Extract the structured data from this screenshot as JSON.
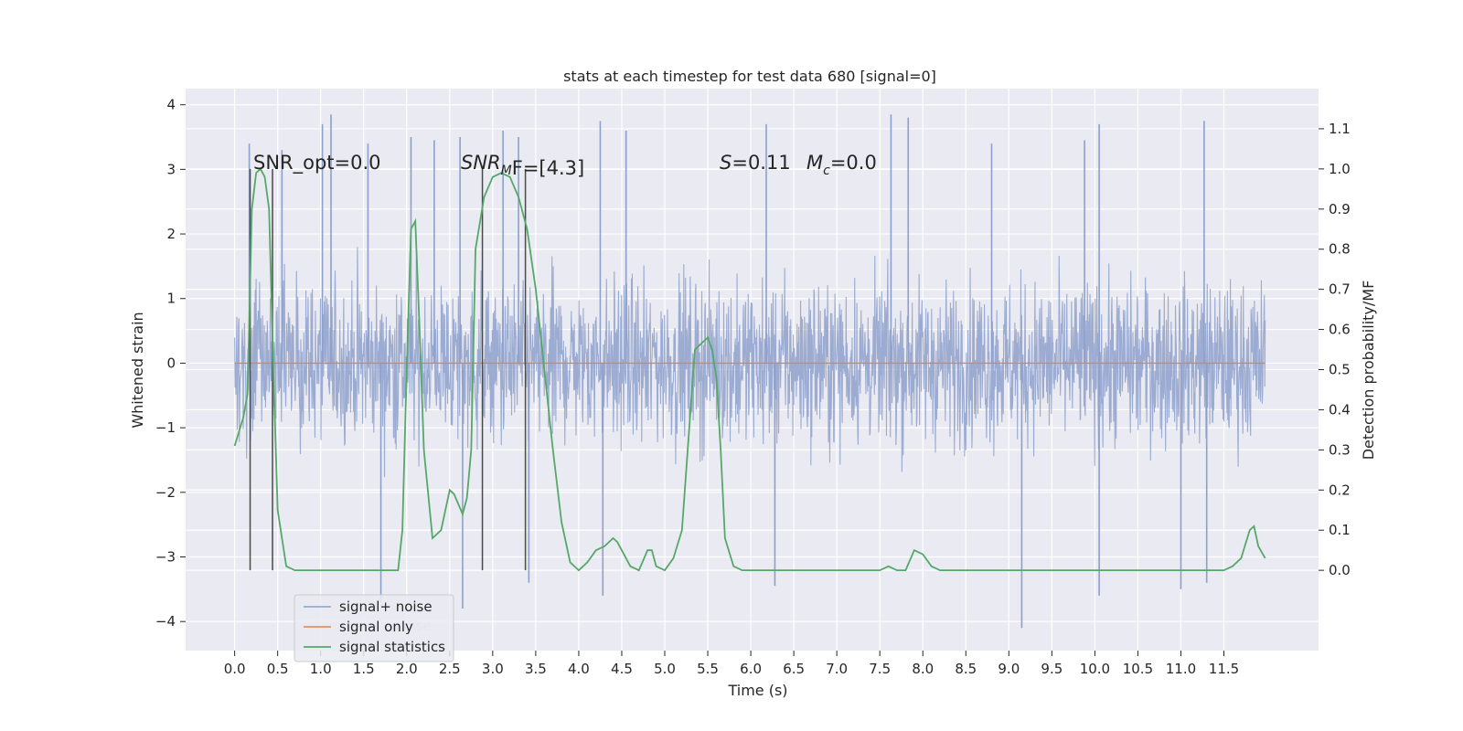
{
  "chart_data": {
    "type": "line",
    "title": "stats at each timestep for test data 680 [signal=0]",
    "xlabel": "Time (s)",
    "ylabel_left": "Whitened strain",
    "ylabel_right": "Detection probability/MF",
    "xlim": [
      -0.57,
      12.6
    ],
    "ylim_left": [
      -4.45,
      4.25
    ],
    "ylim_right": [
      -0.2,
      1.2
    ],
    "x_ticks": [
      0.0,
      0.5,
      1.0,
      1.5,
      2.0,
      2.5,
      3.0,
      3.5,
      4.0,
      4.5,
      5.0,
      5.5,
      6.0,
      6.5,
      7.0,
      7.5,
      8.0,
      8.5,
      9.0,
      9.5,
      10.0,
      10.5,
      11.0,
      11.5
    ],
    "x_tick_labels": [
      "0.0",
      "0.5",
      "1.0",
      "1.5",
      "2.0",
      "2.5",
      "3.0",
      "3.5",
      "4.0",
      "4.5",
      "5.0",
      "5.5",
      "6.0",
      "6.5",
      "7.0",
      "7.5",
      "8.0",
      "8.5",
      "9.0",
      "9.5",
      "10.0",
      "10.5",
      "11.0",
      "11.5"
    ],
    "y_ticks_left": [
      4,
      3,
      2,
      1,
      0,
      -1,
      -2,
      -3,
      -4
    ],
    "y_tick_labels_left": [
      "4",
      "3",
      "2",
      "1",
      "0",
      "−1",
      "−2",
      "−3",
      "−4"
    ],
    "y_ticks_right": [
      1.1,
      1.0,
      0.9,
      0.8,
      0.7,
      0.6,
      0.5,
      0.4,
      0.3,
      0.2,
      0.1,
      0.0
    ],
    "y_tick_labels_right": [
      "1.1",
      "1.0",
      "0.9",
      "0.8",
      "0.7",
      "0.6",
      "0.5",
      "0.4",
      "0.3",
      "0.2",
      "0.1",
      "0.0"
    ],
    "grid": true,
    "legend_position": "lower-left",
    "legend": [
      "signal+ noise",
      "signal only",
      "signal statistics"
    ],
    "legend_background_text": "noise",
    "colors": {
      "noise": "#8da0cb",
      "signal_only": "#dd8452",
      "stats": "#55a868",
      "vlines": "#4a4a4a",
      "plot_bg": "#eaeaf2",
      "grid": "#ffffff"
    },
    "series": [
      {
        "name": "signal+ noise",
        "axis": "left",
        "description_values": "dense whitened noise from t=0.0 to t=11.98 s, bulk band roughly -1.5 to 1.7, spikes up to about 3.9 and down to about -4.1",
        "x_range": [
          0.0,
          11.98
        ],
        "spikes": [
          {
            "x": 0.17,
            "y": 3.4
          },
          {
            "x": 0.55,
            "y": 3.3
          },
          {
            "x": 1.02,
            "y": 3.7
          },
          {
            "x": 1.12,
            "y": 3.85
          },
          {
            "x": 1.55,
            "y": 3.4
          },
          {
            "x": 2.05,
            "y": 3.5
          },
          {
            "x": 2.32,
            "y": 3.45
          },
          {
            "x": 2.62,
            "y": 3.5
          },
          {
            "x": 3.12,
            "y": 3.6
          },
          {
            "x": 3.3,
            "y": 3.5
          },
          {
            "x": 4.25,
            "y": 3.75
          },
          {
            "x": 4.55,
            "y": 3.6
          },
          {
            "x": 6.18,
            "y": 3.7
          },
          {
            "x": 7.63,
            "y": 3.85
          },
          {
            "x": 7.83,
            "y": 3.8
          },
          {
            "x": 8.8,
            "y": 3.4
          },
          {
            "x": 9.88,
            "y": 3.45
          },
          {
            "x": 10.05,
            "y": 3.7
          },
          {
            "x": 11.27,
            "y": 3.75
          },
          {
            "x": 1.7,
            "y": -3.7
          },
          {
            "x": 2.65,
            "y": -3.8
          },
          {
            "x": 3.42,
            "y": -3.4
          },
          {
            "x": 4.28,
            "y": -3.6
          },
          {
            "x": 6.28,
            "y": -3.45
          },
          {
            "x": 9.15,
            "y": -4.1
          },
          {
            "x": 10.05,
            "y": -3.6
          },
          {
            "x": 11.0,
            "y": -3.5
          },
          {
            "x": 11.3,
            "y": -3.4
          }
        ]
      },
      {
        "name": "signal only",
        "axis": "left",
        "x": [
          0.0,
          11.98
        ],
        "y": [
          0.0,
          0.0
        ]
      },
      {
        "name": "signal statistics",
        "axis": "right",
        "x": [
          0.0,
          0.1,
          0.15,
          0.2,
          0.25,
          0.3,
          0.35,
          0.4,
          0.45,
          0.5,
          0.55,
          0.6,
          0.7,
          1.0,
          1.5,
          1.9,
          1.95,
          2.0,
          2.05,
          2.1,
          2.15,
          2.2,
          2.3,
          2.4,
          2.5,
          2.55,
          2.65,
          2.7,
          2.75,
          2.8,
          2.9,
          3.0,
          3.1,
          3.2,
          3.3,
          3.4,
          3.5,
          3.6,
          3.7,
          3.8,
          3.9,
          4.0,
          4.1,
          4.2,
          4.3,
          4.4,
          4.45,
          4.5,
          4.6,
          4.7,
          4.8,
          4.85,
          4.9,
          5.0,
          5.1,
          5.2,
          5.3,
          5.35,
          5.4,
          5.45,
          5.5,
          5.55,
          5.6,
          5.65,
          5.7,
          5.8,
          5.9,
          6.0,
          6.5,
          7.0,
          7.5,
          7.6,
          7.7,
          7.8,
          7.9,
          8.0,
          8.1,
          8.2,
          8.3,
          8.5,
          9.0,
          9.5,
          10.0,
          10.5,
          11.0,
          11.5,
          11.6,
          11.7,
          11.8,
          11.85,
          11.9,
          11.98
        ],
        "y": [
          0.31,
          0.38,
          0.44,
          0.9,
          0.99,
          1.0,
          0.98,
          0.9,
          0.5,
          0.15,
          0.08,
          0.01,
          0.0,
          0.0,
          0.0,
          0.0,
          0.1,
          0.5,
          0.85,
          0.87,
          0.6,
          0.3,
          0.08,
          0.1,
          0.2,
          0.19,
          0.14,
          0.18,
          0.3,
          0.8,
          0.93,
          0.98,
          0.99,
          0.98,
          0.93,
          0.85,
          0.7,
          0.5,
          0.3,
          0.12,
          0.02,
          0.0,
          0.02,
          0.05,
          0.06,
          0.08,
          0.07,
          0.05,
          0.01,
          0.0,
          0.05,
          0.05,
          0.01,
          0.0,
          0.03,
          0.1,
          0.4,
          0.55,
          0.56,
          0.57,
          0.58,
          0.55,
          0.48,
          0.3,
          0.08,
          0.01,
          0.0,
          0.0,
          0.0,
          0.0,
          0.0,
          0.01,
          0.0,
          0.0,
          0.05,
          0.04,
          0.01,
          0.0,
          0.0,
          0.0,
          0.0,
          0.0,
          0.0,
          0.0,
          0.0,
          0.0,
          0.01,
          0.03,
          0.1,
          0.11,
          0.06,
          0.03
        ]
      }
    ],
    "vertical_lines": [
      {
        "x": 0.18,
        "from": 0.0,
        "to": 1.0,
        "axis": "right"
      },
      {
        "x": 0.44,
        "from": 0.0,
        "to": 1.0,
        "axis": "right"
      },
      {
        "x": 2.88,
        "from": 0.0,
        "to": 1.0,
        "axis": "right"
      },
      {
        "x": 3.38,
        "from": 0.0,
        "to": 1.0,
        "axis": "right"
      }
    ],
    "annotations": {
      "snr_opt": "SNR_opt=0.0",
      "snr_mf_main": "SNR",
      "snr_mf_sub": "M",
      "snr_mf_rest": "F=[4.3]",
      "s_main": "S",
      "s_rest": "=0.11",
      "mc_main": "M",
      "mc_sub": "c",
      "mc_rest": "=0.0"
    }
  }
}
